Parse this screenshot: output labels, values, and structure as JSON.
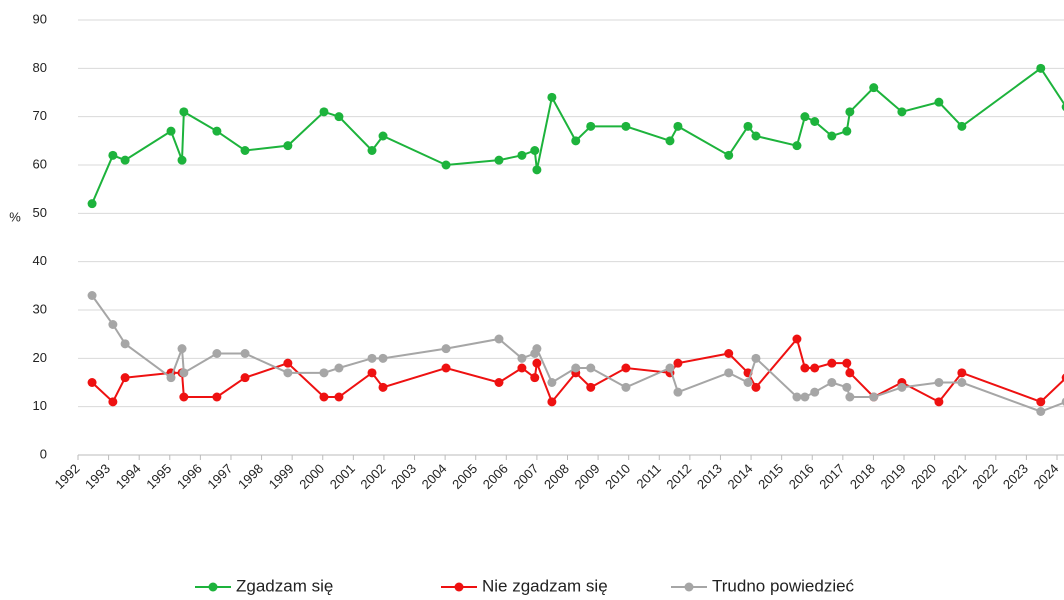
{
  "chart_data": {
    "type": "line",
    "y_label": "%",
    "x": [
      1992.46,
      1993.14,
      1993.54,
      1995.04,
      1995.4,
      1995.46,
      1996.54,
      1997.46,
      1998.86,
      2000.04,
      2000.53,
      2001.61,
      2001.97,
      2004.03,
      2005.76,
      2006.51,
      2006.93,
      2007.0,
      2007.49,
      2008.27,
      2008.76,
      2009.91,
      2011.35,
      2011.61,
      2013.27,
      2013.9,
      2014.16,
      2015.5,
      2015.76,
      2016.08,
      2016.64,
      2017.13,
      2017.23,
      2018.01,
      2018.93,
      2020.14,
      2020.89,
      2023.47,
      2024.3
    ],
    "series": [
      {
        "name": "Zgadzam się",
        "color": "#1db33c",
        "values": [
          52,
          62,
          61,
          67,
          61,
          71,
          67,
          63,
          64,
          71,
          70,
          63,
          66,
          60,
          61,
          62,
          63,
          59,
          74,
          65,
          68,
          68,
          65,
          68,
          62,
          68,
          66,
          64,
          70,
          69,
          66,
          67,
          71,
          76,
          71,
          73,
          68,
          80,
          72
        ]
      },
      {
        "name": "Nie zgadzam się",
        "color": "#ee1111",
        "values": [
          15,
          11,
          16,
          17,
          17,
          12,
          12,
          16,
          19,
          12,
          12,
          17,
          14,
          18,
          15,
          18,
          16,
          19,
          11,
          17,
          14,
          18,
          17,
          19,
          21,
          17,
          14,
          24,
          18,
          18,
          19,
          19,
          17,
          12,
          15,
          11,
          17,
          11,
          16
        ]
      },
      {
        "name": "Trudno powiedzieć",
        "color": "#a6a6a6",
        "values": [
          33,
          27,
          23,
          16,
          22,
          17,
          21,
          21,
          17,
          17,
          18,
          20,
          20,
          22,
          24,
          20,
          21,
          22,
          15,
          18,
          18,
          14,
          18,
          13,
          17,
          15,
          20,
          12,
          12,
          13,
          15,
          14,
          12,
          12,
          14,
          15,
          15,
          9,
          11
        ]
      }
    ],
    "xlim": [
      1992,
      2024.35
    ],
    "xticks": [
      1992,
      1993,
      1994,
      1995,
      1996,
      1997,
      1998,
      1999,
      2000,
      2001,
      2002,
      2003,
      2004,
      2005,
      2006,
      2007,
      2008,
      2009,
      2010,
      2011,
      2012,
      2013,
      2014,
      2015,
      2016,
      2017,
      2018,
      2019,
      2020,
      2021,
      2022,
      2023,
      2024
    ],
    "ylim": [
      0,
      90
    ],
    "yticks": [
      0,
      10,
      20,
      30,
      40,
      50,
      60,
      70,
      80,
      90
    ],
    "grid": true
  }
}
